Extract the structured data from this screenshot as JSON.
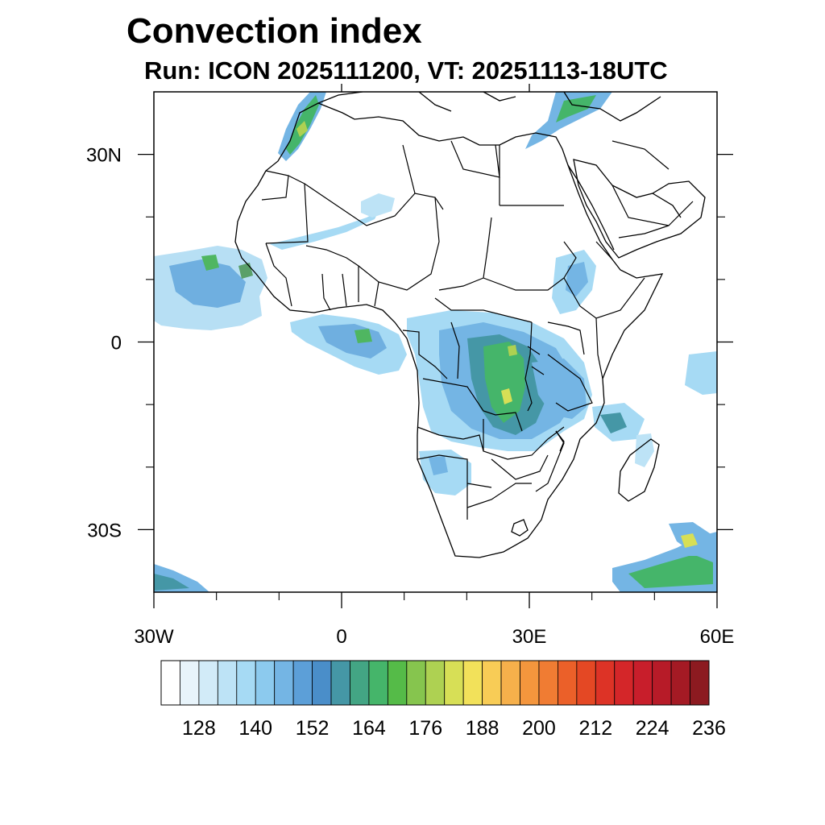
{
  "title": "Convection index",
  "subtitle": "Run: ICON 2025111200,  VT: 20251113-18UTC",
  "map": {
    "region": "Africa",
    "lon_range": [
      -30,
      60
    ],
    "lat_range": [
      -40,
      40
    ],
    "lat_labels": [
      {
        "lat": 30,
        "label": "30N"
      },
      {
        "lat": 0,
        "label": "0"
      },
      {
        "lat": -30,
        "label": "30S"
      }
    ],
    "lon_labels": [
      {
        "lon": -30,
        "label": "30W"
      },
      {
        "lon": 0,
        "label": "0"
      },
      {
        "lon": 30,
        "label": "30E"
      },
      {
        "lon": 60,
        "label": "60E"
      }
    ],
    "minor_lon_ticks": [
      -20,
      -10,
      10,
      20,
      40,
      50
    ],
    "minor_lat_ticks": [
      20,
      10,
      -10,
      -20
    ]
  },
  "colorbar": {
    "colors": [
      "#ffffff",
      "#e8f4fb",
      "#d2ebf8",
      "#bde3f6",
      "#a6daf4",
      "#8ccaee",
      "#74b5e4",
      "#5c9fd8",
      "#4a8ec9",
      "#4597a6",
      "#43a584",
      "#45b56a",
      "#55bb48",
      "#86c54e",
      "#aed152",
      "#d7df56",
      "#f2e15a",
      "#f8cc56",
      "#f6b04b",
      "#f4963d",
      "#f07c33",
      "#eb6029",
      "#e44824",
      "#dd3326",
      "#d42629",
      "#c81e2b",
      "#b71b28",
      "#a41a24",
      "#8c1a20"
    ],
    "tick_labels": [
      "128",
      "140",
      "152",
      "164",
      "176",
      "188",
      "200",
      "212",
      "224",
      "236"
    ]
  }
}
